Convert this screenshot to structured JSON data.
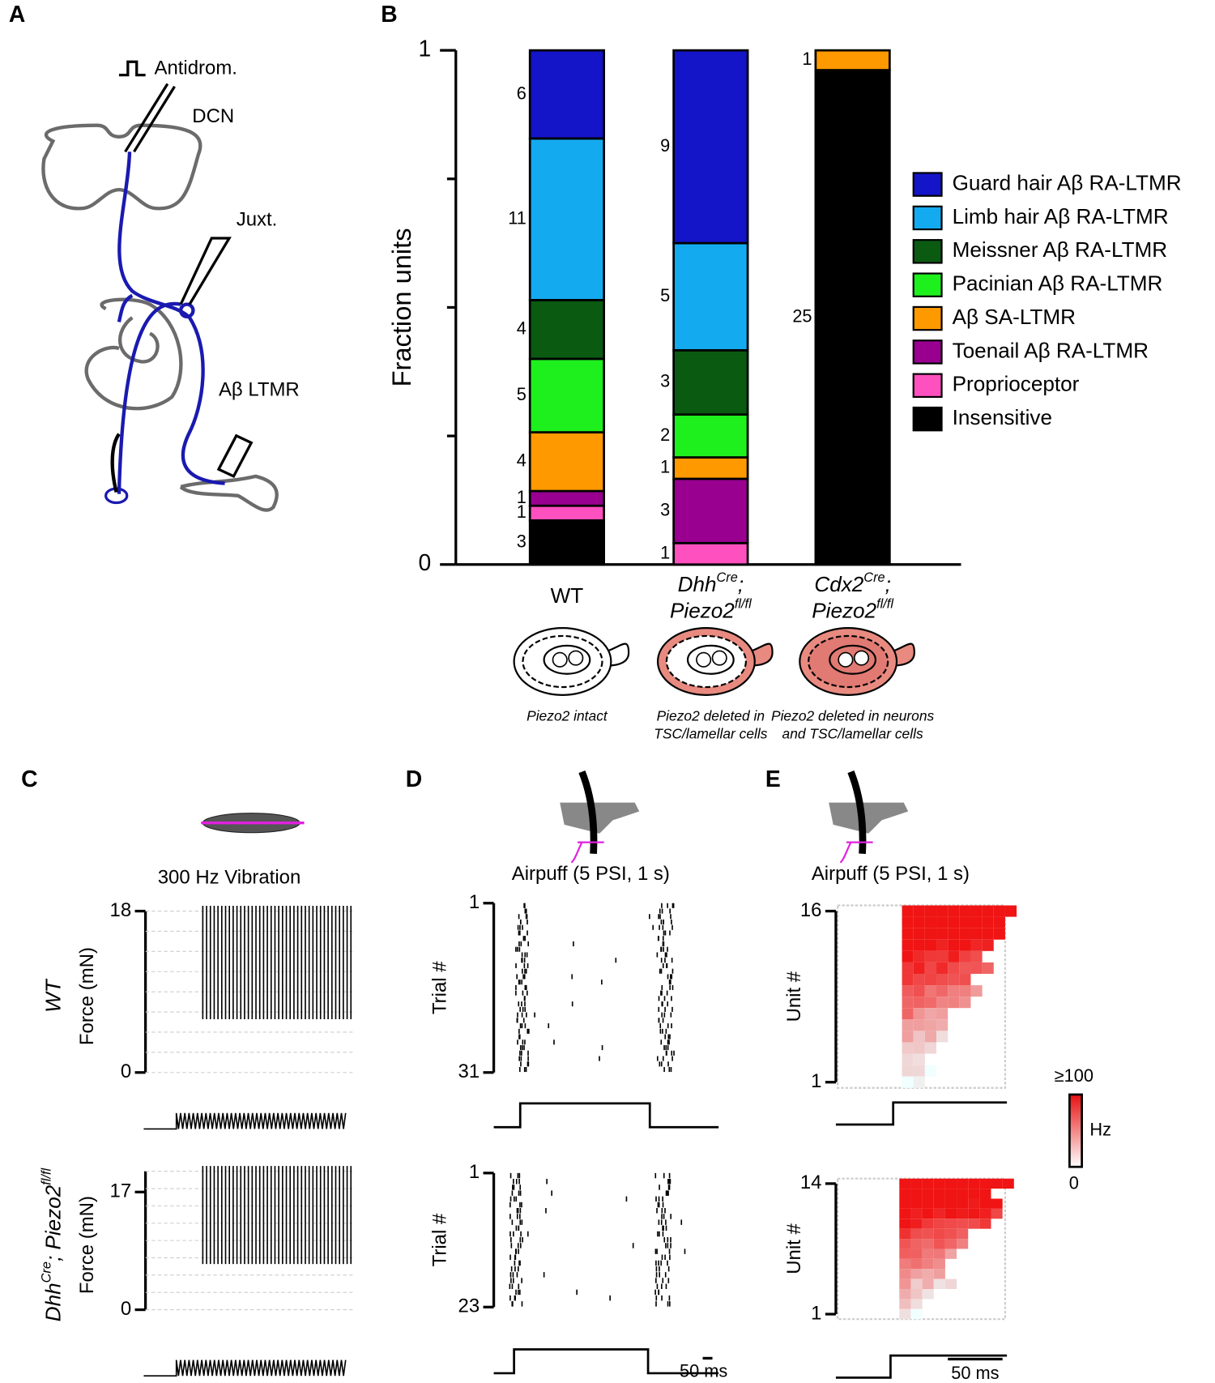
{
  "panels": [
    "A",
    "B",
    "C",
    "D",
    "E"
  ],
  "diagram": {
    "stimulus": "Antidrom.",
    "target": "DCN",
    "recording": "Juxt.",
    "neuron": "Aβ LTMR"
  },
  "chart_data": [
    {
      "type": "stacked_bar",
      "normalize": true,
      "ylabel": "Fraction units",
      "ylim": [
        0,
        1
      ],
      "yticks": [
        0,
        1
      ],
      "minor_yticks": [
        0.25,
        0.5,
        0.75
      ],
      "categories": [
        {
          "italic": false,
          "lines": [
            [
              {
                "text": "WT"
              }
            ]
          ],
          "caption": [
            "Piezo2 intact"
          ],
          "deleted": "none"
        },
        {
          "italic": true,
          "lines": [
            [
              {
                "text": "Dhh"
              },
              {
                "text": "Cre",
                "sup": true
              },
              {
                "text": ";"
              }
            ],
            [
              {
                "text": "Piezo2"
              },
              {
                "text": "fl/fl",
                "sup": true
              }
            ]
          ],
          "caption": [
            "Piezo2 deleted in",
            "TSC/lamellar cells"
          ],
          "deleted": "lamellar"
        },
        {
          "italic": true,
          "lines": [
            [
              {
                "text": "Cdx2"
              },
              {
                "text": "Cre",
                "sup": true
              },
              {
                "text": ";"
              }
            ],
            [
              {
                "text": "Piezo2"
              },
              {
                "text": "fl/fl",
                "sup": true
              }
            ]
          ],
          "caption": [
            "Piezo2 deleted in neurons",
            "and TSC/lamellar cells"
          ],
          "deleted": "all"
        }
      ],
      "series": [
        {
          "name": "Guard hair Aβ RA-LTMR",
          "color": "#1414c8",
          "values": [
            6,
            9,
            null
          ]
        },
        {
          "name": "Limb hair Aβ RA-LTMR",
          "color": "#14aaf0",
          "values": [
            11,
            5,
            null
          ]
        },
        {
          "name": "Meissner Aβ RA-LTMR",
          "color": "#0b5a12",
          "values": [
            4,
            3,
            null
          ]
        },
        {
          "name": "Pacinian Aβ RA-LTMR",
          "color": "#1ef01e",
          "values": [
            5,
            2,
            null
          ]
        },
        {
          "name": "Aβ SA-LTMR",
          "color": "#ff9900",
          "values": [
            4,
            1,
            1
          ]
        },
        {
          "name": "Toenail Aβ RA-LTMR",
          "color": "#990090",
          "values": [
            1,
            3,
            null
          ]
        },
        {
          "name": "Proprioceptor",
          "color": "#ff50c0",
          "values": [
            1,
            1,
            null
          ]
        },
        {
          "name": "Insensitive",
          "color": "#000000",
          "values": [
            3,
            null,
            25
          ]
        }
      ]
    },
    {
      "type": "trace",
      "title": "300 Hz Vibration",
      "ylabel": "Force (mN)",
      "row_label": [
        {
          "text": "WT"
        }
      ],
      "ylim": [
        0,
        18
      ],
      "yticks": [
        0,
        18
      ]
    },
    {
      "type": "trace",
      "ylabel": "Force (mN)",
      "row_label": [
        {
          "text": "Dhh"
        },
        {
          "text": "Cre",
          "sup": true
        },
        {
          "text": "; Piezo2"
        },
        {
          "text": "fl/fl",
          "sup": true
        }
      ],
      "ylim": [
        0,
        20
      ],
      "yticks": [
        0,
        17
      ]
    },
    {
      "type": "raster",
      "title": "Airpuff (5 PSI, 1 s)",
      "ylabel": "Trial #",
      "ylim": [
        1,
        31
      ],
      "yticks": [
        1,
        31
      ]
    },
    {
      "type": "raster",
      "ylabel": "Trial #",
      "ylim": [
        1,
        23
      ],
      "yticks": [
        1,
        23
      ],
      "scalebar_label": "50 ms"
    },
    {
      "type": "heatmap",
      "title": "Airpuff (5 PSI, 1 s)",
      "ylabel": "Unit #",
      "ylim": [
        1,
        16
      ],
      "yticks": [
        1,
        16
      ]
    },
    {
      "type": "heatmap",
      "ylabel": "Unit #",
      "ylim": [
        1,
        14
      ],
      "yticks": [
        1,
        14
      ],
      "scalebar_label": "50 ms",
      "colorbar": {
        "label": "Hz",
        "ticks": [
          {
            "value": 100,
            "label": "≥100"
          },
          0
        ]
      }
    }
  ]
}
